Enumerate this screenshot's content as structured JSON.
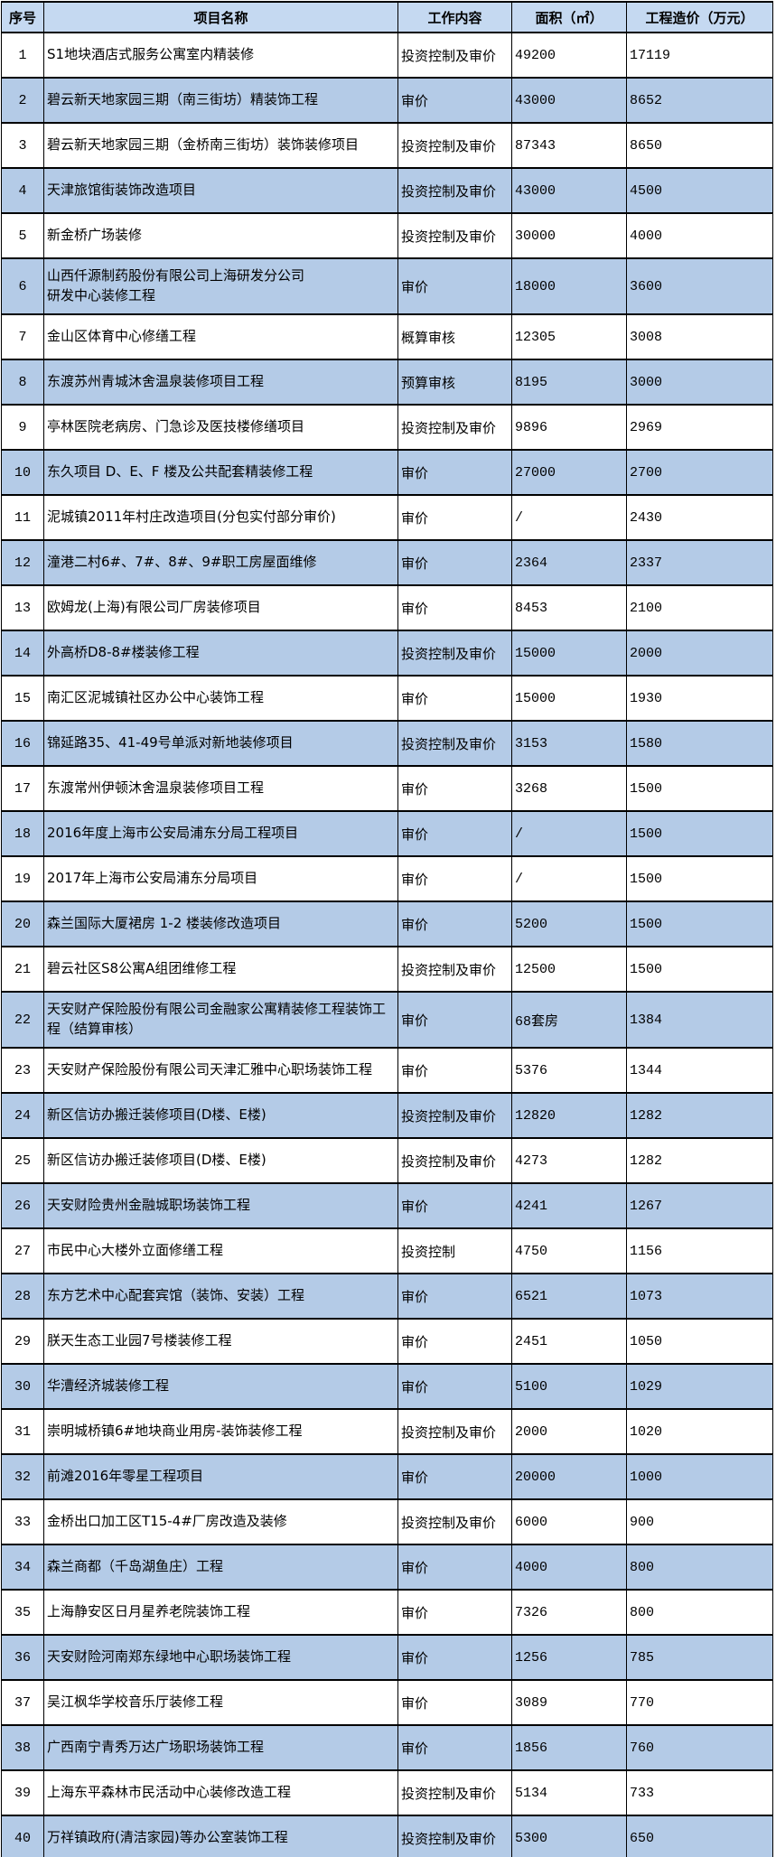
{
  "colors": {
    "header_bg": "#c5d9f1",
    "even_row_bg": "#b4cbe7",
    "odd_row_bg": "#ffffff",
    "border": "#000000",
    "text": "#000000"
  },
  "table": {
    "headers": {
      "no": "序号",
      "name": "项目名称",
      "work": "工作内容",
      "area": "面积（㎡）",
      "cost": "工程造价（万元）"
    },
    "rows": [
      {
        "no": "1",
        "name": "S1地块酒店式服务公寓室内精装修",
        "work": "投资控制及审价",
        "area": "49200",
        "cost": "17119"
      },
      {
        "no": "2",
        "name": "碧云新天地家园三期（南三街坊）精装饰工程",
        "work": "审价",
        "area": "43000",
        "cost": "8652"
      },
      {
        "no": "3",
        "name": "碧云新天地家园三期（金桥南三街坊）装饰装修项目",
        "work": "投资控制及审价",
        "area": "87343",
        "cost": "8650"
      },
      {
        "no": "4",
        "name": "天津旅馆街装饰改造项目",
        "work": "投资控制及审价",
        "area": "43000",
        "cost": "4500"
      },
      {
        "no": "5",
        "name": "新金桥广场装修",
        "work": "投资控制及审价",
        "area": "30000",
        "cost": "4000"
      },
      {
        "no": "6",
        "name": "山西仟源制药股份有限公司上海研发分公司\n研发中心装修工程",
        "work": "审价",
        "area": "18000",
        "cost": "3600",
        "tall": true
      },
      {
        "no": "7",
        "name": "金山区体育中心修缮工程",
        "work": "概算审核",
        "area": "12305",
        "cost": "3008"
      },
      {
        "no": "8",
        "name": "东渡苏州青城沐舍温泉装修项目工程",
        "work": "预算审核",
        "area": "8195",
        "cost": "3000"
      },
      {
        "no": "9",
        "name": "亭林医院老病房、门急诊及医技楼修缮项目",
        "work": "投资控制及审价",
        "area": "9896",
        "cost": "2969"
      },
      {
        "no": "10",
        "name": "东久项目 D、E、F 楼及公共配套精装修工程",
        "work": "审价",
        "area": "27000",
        "cost": "2700"
      },
      {
        "no": "11",
        "name": "泥城镇2011年村庄改造项目(分包实付部分审价)",
        "work": "审价",
        "area": "/",
        "cost": "2430"
      },
      {
        "no": "12",
        "name": "潼港二村6#、7#、8#、9#职工房屋面维修",
        "work": "审价",
        "area": "2364",
        "cost": "2337"
      },
      {
        "no": "13",
        "name": "欧姆龙(上海)有限公司厂房装修项目",
        "work": "审价",
        "area": "8453",
        "cost": "2100"
      },
      {
        "no": "14",
        "name": "外高桥D8-8#楼装修工程",
        "work": "投资控制及审价",
        "area": "15000",
        "cost": "2000"
      },
      {
        "no": "15",
        "name": "南汇区泥城镇社区办公中心装饰工程",
        "work": "审价",
        "area": "15000",
        "cost": "1930"
      },
      {
        "no": "16",
        "name": "锦延路35、41-49号单派对新地装修项目",
        "work": "投资控制及审价",
        "area": "3153",
        "cost": "1580"
      },
      {
        "no": "17",
        "name": "东渡常州伊顿沐舍温泉装修项目工程",
        "work": "审价",
        "area": "3268",
        "cost": "1500"
      },
      {
        "no": "18",
        "name": "2016年度上海市公安局浦东分局工程项目",
        "work": "审价",
        "area": "/",
        "cost": "1500"
      },
      {
        "no": "19",
        "name": "2017年上海市公安局浦东分局项目",
        "work": "审价",
        "area": "/",
        "cost": "1500"
      },
      {
        "no": "20",
        "name": "森兰国际大厦裙房 1-2 楼装修改造项目",
        "work": "审价",
        "area": "5200",
        "cost": "1500"
      },
      {
        "no": "21",
        "name": "碧云社区S8公寓A组团维修工程",
        "work": "投资控制及审价",
        "area": "12500",
        "cost": "1500"
      },
      {
        "no": "22",
        "name": "天安财产保险股份有限公司金融家公寓精装修工程装饰工程（结算审核）",
        "work": "审价",
        "area": "68套房",
        "cost": "1384",
        "tall": true
      },
      {
        "no": "23",
        "name": "天安财产保险股份有限公司天津汇雅中心职场装饰工程",
        "work": "审价",
        "area": "5376",
        "cost": "1344"
      },
      {
        "no": "24",
        "name": "新区信访办搬迁装修项目(D楼、E楼)",
        "work": "投资控制及审价",
        "area": "12820",
        "cost": "1282"
      },
      {
        "no": "25",
        "name": "新区信访办搬迁装修项目(D楼、E楼)",
        "work": "投资控制及审价",
        "area": "4273",
        "cost": "1282"
      },
      {
        "no": "26",
        "name": "天安财险贵州金融城职场装饰工程",
        "work": "审价",
        "area": "4241",
        "cost": "1267"
      },
      {
        "no": "27",
        "name": "市民中心大楼外立面修缮工程",
        "work": "投资控制",
        "area": "4750",
        "cost": "1156"
      },
      {
        "no": "28",
        "name": "东方艺术中心配套宾馆（装饰、安装）工程",
        "work": "审价",
        "area": "6521",
        "cost": "1073"
      },
      {
        "no": "29",
        "name": "朕天生态工业园7号楼装修工程",
        "work": "审价",
        "area": "2451",
        "cost": "1050"
      },
      {
        "no": "30",
        "name": "华漕经济城装修工程",
        "work": "审价",
        "area": "5100",
        "cost": "1029"
      },
      {
        "no": "31",
        "name": "崇明城桥镇6#地块商业用房-装饰装修工程",
        "work": "投资控制及审价",
        "area": "2000",
        "cost": "1020"
      },
      {
        "no": "32",
        "name": "前滩2016年零星工程项目",
        "work": "审价",
        "area": "20000",
        "cost": "1000"
      },
      {
        "no": "33",
        "name": "金桥出口加工区T15-4#厂房改造及装修",
        "work": "投资控制及审价",
        "area": "6000",
        "cost": "900"
      },
      {
        "no": "34",
        "name": "森兰商都（千岛湖鱼庄）工程",
        "work": "审价",
        "area": "4000",
        "cost": "800"
      },
      {
        "no": "35",
        "name": "上海静安区日月星养老院装饰工程",
        "work": "审价",
        "area": "7326",
        "cost": "800"
      },
      {
        "no": "36",
        "name": "天安财险河南郑东绿地中心职场装饰工程",
        "work": "审价",
        "area": "1256",
        "cost": "785"
      },
      {
        "no": "37",
        "name": "吴江枫华学校音乐厅装修工程",
        "work": "审价",
        "area": "3089",
        "cost": "770"
      },
      {
        "no": "38",
        "name": "广西南宁青秀万达广场职场装饰工程",
        "work": "审价",
        "area": "1856",
        "cost": "760"
      },
      {
        "no": "39",
        "name": "上海东平森林市民活动中心装修改造工程",
        "work": "投资控制及审价",
        "area": "5134",
        "cost": "733"
      },
      {
        "no": "40",
        "name": "万祥镇政府(清洁家园)等办公室装饰工程",
        "work": "投资控制及审价",
        "area": "5300",
        "cost": "650"
      }
    ]
  }
}
